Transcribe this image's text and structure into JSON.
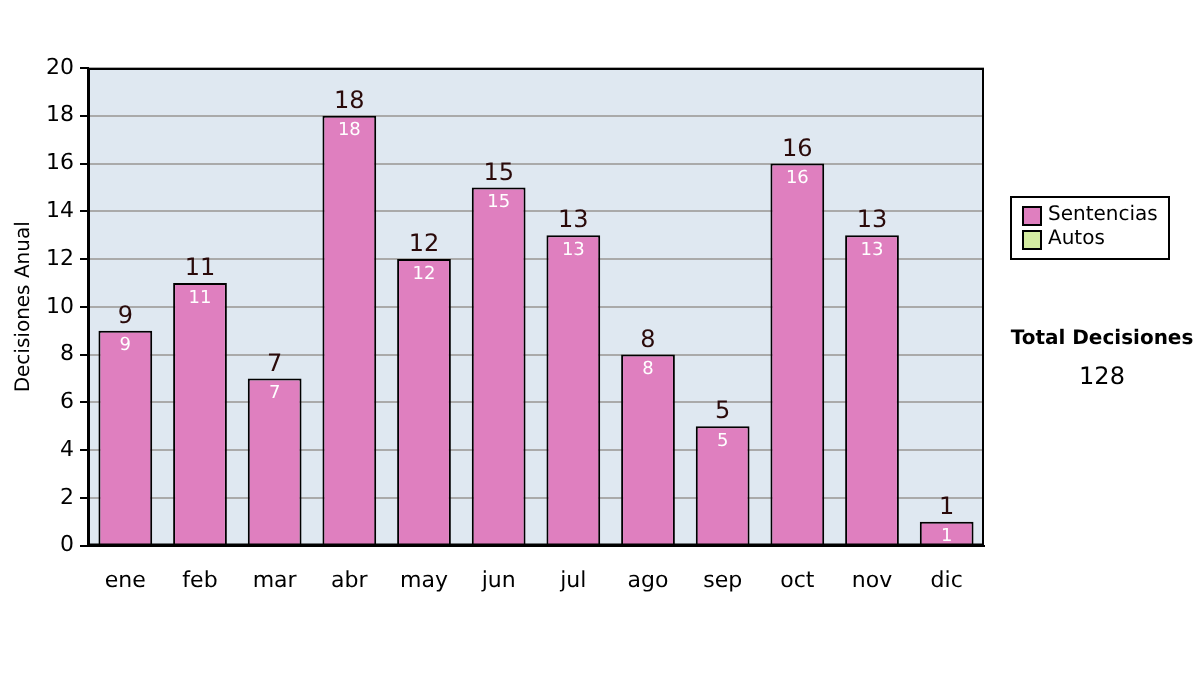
{
  "chart_data": {
    "type": "bar",
    "ylabel": "Decisiones Anual",
    "categories": [
      "ene",
      "feb",
      "mar",
      "abr",
      "may",
      "jun",
      "jul",
      "ago",
      "sep",
      "oct",
      "nov",
      "dic"
    ],
    "series": [
      {
        "name": "Sentencias",
        "color": "#df7fbf",
        "values": [
          9,
          11,
          7,
          18,
          12,
          15,
          13,
          8,
          5,
          16,
          13,
          1
        ],
        "value_labels": [
          "9",
          "11",
          "7",
          "18",
          "12",
          "15",
          "13",
          "8",
          "5",
          "16",
          "13",
          "1"
        ]
      },
      {
        "name": "Autos",
        "color": "#d4eca0",
        "values": [
          0,
          0,
          0,
          0,
          0,
          0,
          0,
          0,
          0,
          0,
          0,
          0
        ]
      }
    ],
    "stacked": true,
    "totals": [
      "9",
      "11",
      "7",
      "18",
      "12",
      "15",
      "13",
      "8",
      "5",
      "16",
      "13",
      "1"
    ],
    "ylim": [
      0,
      20
    ],
    "yticks": [
      0,
      2,
      4,
      6,
      8,
      10,
      12,
      14,
      16,
      18,
      20
    ],
    "grid": "y",
    "legend": "right",
    "annotations": [
      "Total Decisiones",
      "128"
    ]
  }
}
